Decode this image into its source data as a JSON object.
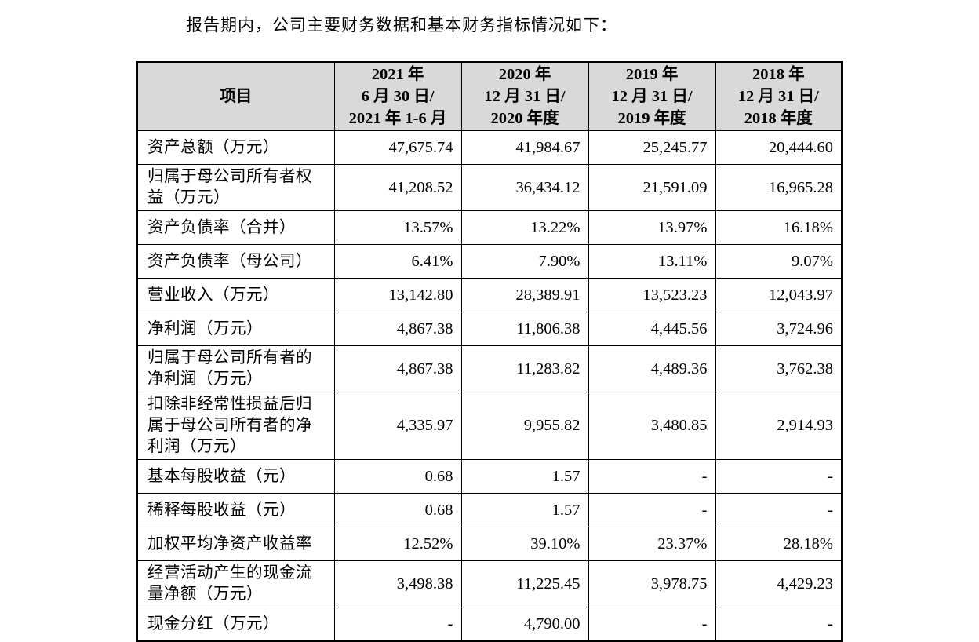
{
  "intro": "报告期内，公司主要财务数据和基本财务指标情况如下：",
  "table": {
    "header": [
      [
        "项目"
      ],
      [
        "2021 年",
        "6 月 30 日/",
        "2021 年 1-6 月"
      ],
      [
        "2020 年",
        "12 月 31 日/",
        "2020 年度"
      ],
      [
        "2019 年",
        "12 月 31 日/",
        "2019 年度"
      ],
      [
        "2018 年",
        "12 月 31 日/",
        "2018 年度"
      ]
    ],
    "rows": [
      [
        "资产总额（万元）",
        "47,675.74",
        "41,984.67",
        "25,245.77",
        "20,444.60"
      ],
      [
        "归属于母公司所有者权益（万元）",
        "41,208.52",
        "36,434.12",
        "21,591.09",
        "16,965.28"
      ],
      [
        "资产负债率（合并）",
        "13.57%",
        "13.22%",
        "13.97%",
        "16.18%"
      ],
      [
        "资产负债率（母公司）",
        "6.41%",
        "7.90%",
        "13.11%",
        "9.07%"
      ],
      [
        "营业收入（万元）",
        "13,142.80",
        "28,389.91",
        "13,523.23",
        "12,043.97"
      ],
      [
        "净利润（万元）",
        "4,867.38",
        "11,806.38",
        "4,445.56",
        "3,724.96"
      ],
      [
        "归属于母公司所有者的净利润（万元）",
        "4,867.38",
        "11,283.82",
        "4,489.36",
        "3,762.38"
      ],
      [
        "扣除非经常性损益后归属于母公司所有者的净利润（万元）",
        "4,335.97",
        "9,955.82",
        "3,480.85",
        "2,914.93"
      ],
      [
        "基本每股收益（元）",
        "0.68",
        "1.57",
        "-",
        "-"
      ],
      [
        "稀释每股收益（元）",
        "0.68",
        "1.57",
        "-",
        "-"
      ],
      [
        "加权平均净资产收益率",
        "12.52%",
        "39.10%",
        "23.37%",
        "28.18%"
      ],
      [
        "经营活动产生的现金流量净额（万元）",
        "3,498.38",
        "11,225.45",
        "3,978.75",
        "4,429.23"
      ],
      [
        "现金分红（万元）",
        "-",
        "4,790.00",
        "-",
        "-"
      ]
    ]
  }
}
